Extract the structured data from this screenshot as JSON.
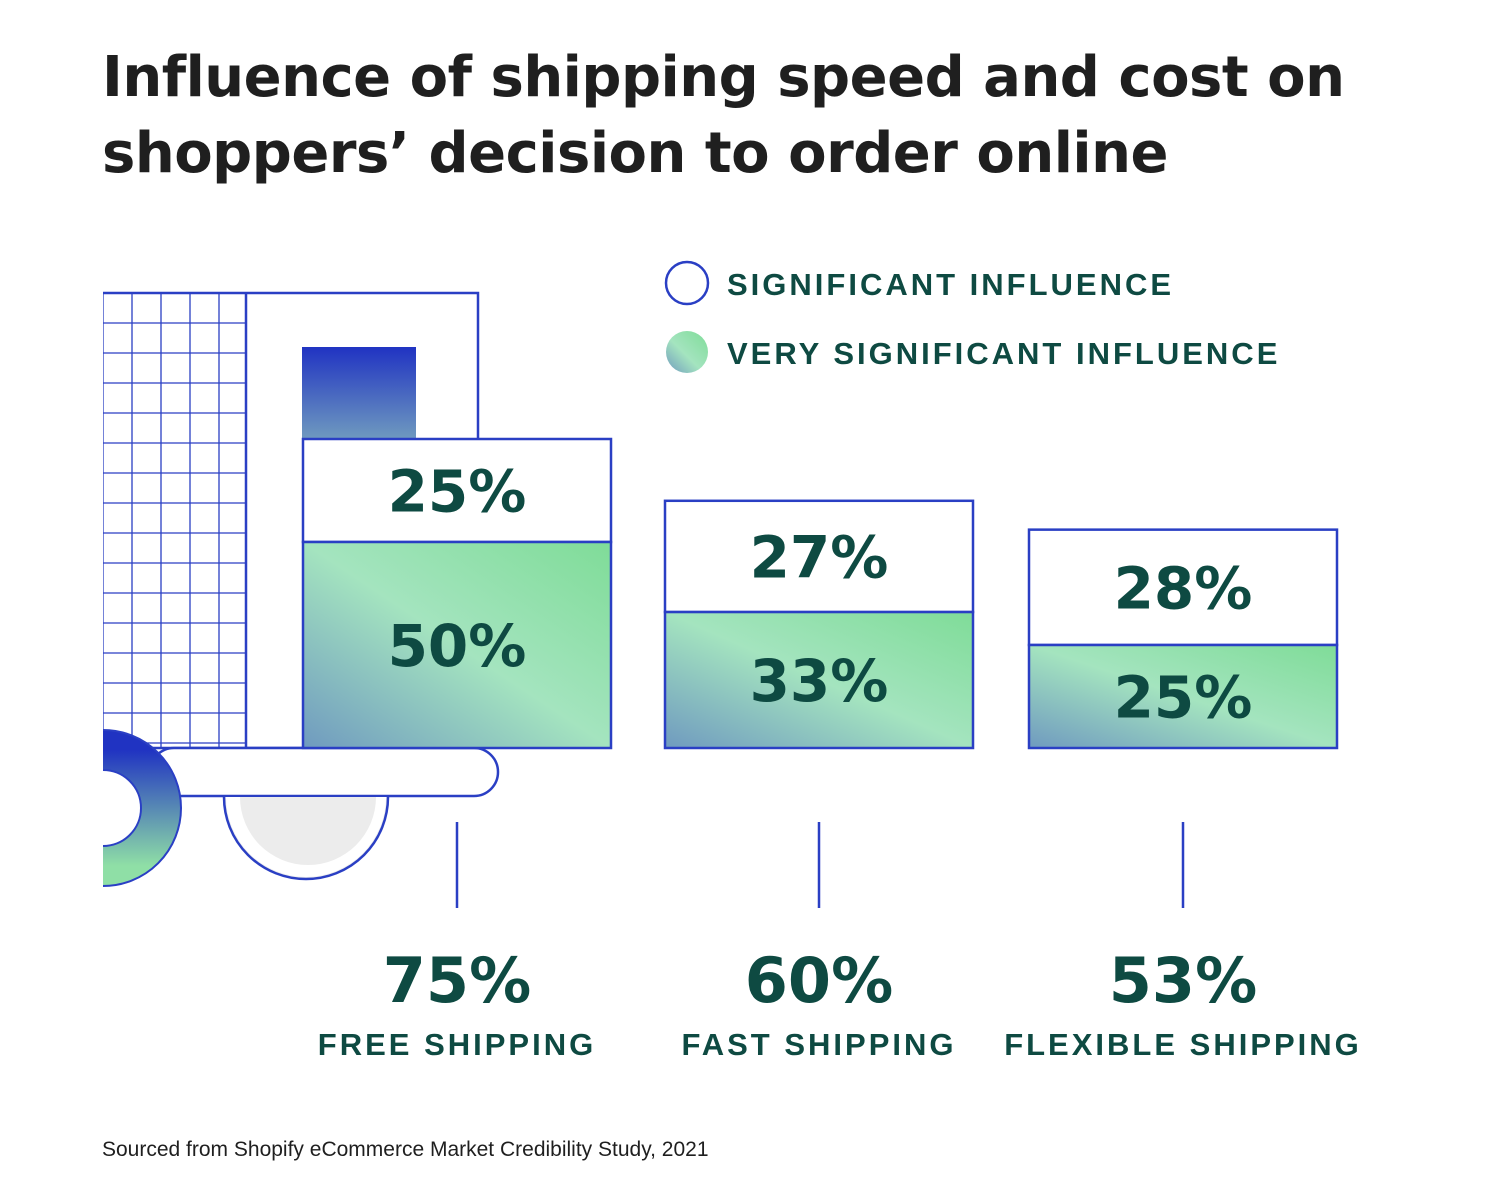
{
  "title": "Influence of shipping speed and cost on shoppers’ decision to order online",
  "source": "Sourced from Shopify eCommerce Market Credibility Study, 2021",
  "colors": {
    "text_dark": "#0e4a42",
    "outline_blue": "#2a3fc4",
    "gradient_green": "#7fdc98",
    "gradient_teal": "#6f9abf",
    "wheel_gray": "#ececec"
  },
  "chart_data": {
    "type": "bar",
    "stacked": true,
    "legend": [
      {
        "label": "SIGNIFICANT INFLUENCE",
        "style": "outline"
      },
      {
        "label": "VERY SIGNIFICANT INFLUENCE",
        "style": "gradient-fill"
      }
    ],
    "categories": [
      "FREE SHIPPING",
      "FAST SHIPPING",
      "FLEXIBLE SHIPPING"
    ],
    "series": [
      {
        "name": "VERY SIGNIFICANT INFLUENCE",
        "values": [
          50,
          33,
          25
        ]
      },
      {
        "name": "SIGNIFICANT INFLUENCE",
        "values": [
          25,
          27,
          28
        ]
      }
    ],
    "totals": [
      75,
      60,
      53
    ],
    "unit": "%",
    "legend_position": "top-right",
    "grid": false
  }
}
